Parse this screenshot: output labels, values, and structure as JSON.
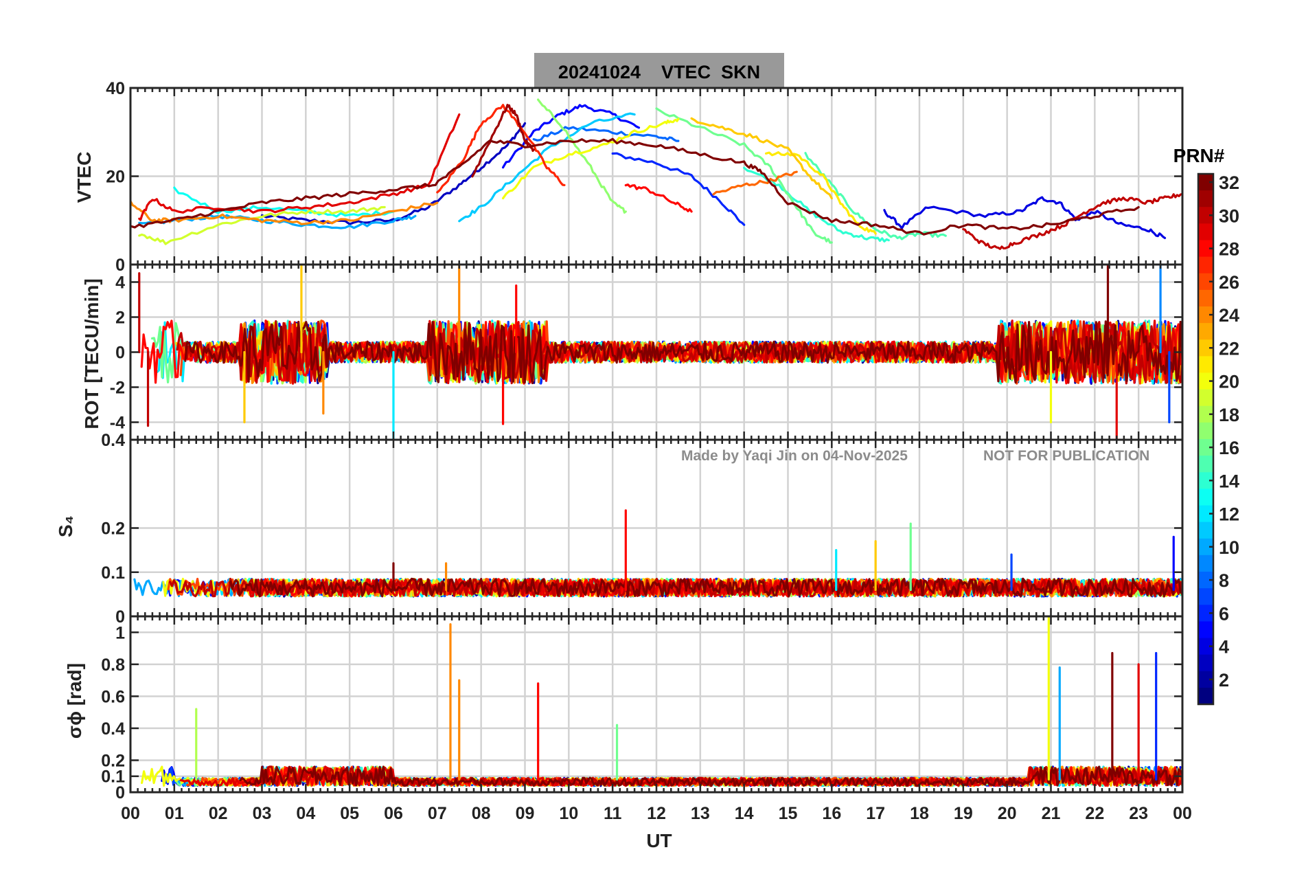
{
  "figure_title": "20241024    VTEC  SKN",
  "watermark": {
    "made_by": "Made by Yaqi Jin on 04-Nov-2025",
    "notice": "NOT FOR PUBLICATION"
  },
  "colors": {
    "title_background": "#999999",
    "grid": "#d2d2d2",
    "axes": "#262626",
    "watermark": "#8c8c8c"
  },
  "colorbar": {
    "title": "PRN#",
    "colormap": "jet",
    "range": [
      1,
      32
    ],
    "ticks": [
      "2",
      "4",
      "6",
      "8",
      "10",
      "12",
      "14",
      "16",
      "18",
      "20",
      "22",
      "24",
      "26",
      "28",
      "30",
      "32"
    ]
  },
  "chart_data": [
    {
      "type": "line",
      "panel": "vtec",
      "title": "20241024    VTEC  SKN",
      "ylabel": "VTEC",
      "xlabel": "",
      "xlim": [
        0,
        24
      ],
      "ylim": [
        0,
        40
      ],
      "ytick_labels": [
        "40",
        "20",
        ""
      ],
      "yticks": [
        40,
        20,
        0
      ],
      "series": [
        {
          "name": "PRN 3",
          "prn": 3,
          "x": [
            3.0,
            4.0,
            5.0,
            6.0,
            6.8,
            7.5,
            8.0,
            8.6,
            9.0
          ],
          "y": [
            11,
            10,
            9.5,
            10,
            13,
            18,
            22,
            27,
            32
          ]
        },
        {
          "name": "PRN 5",
          "prn": 5,
          "x": [
            8.5,
            9.2,
            9.8,
            10.3,
            11.0,
            11.6
          ],
          "y": [
            22,
            30,
            34,
            36,
            34,
            31
          ]
        },
        {
          "name": "PRN 6",
          "prn": 6,
          "x": [
            11.0,
            12.0,
            12.8,
            13.5,
            14.0
          ],
          "y": [
            25,
            23,
            20,
            14,
            9
          ]
        },
        {
          "name": "PRN 8",
          "prn": 8,
          "x": [
            9.2,
            10.0,
            11.0,
            12.0,
            12.5
          ],
          "y": [
            28,
            31,
            30,
            29,
            28
          ]
        },
        {
          "name": "PRN 4",
          "prn": 4,
          "x": [
            17.2,
            17.6,
            18.2,
            19.5,
            20.3,
            20.8,
            21.2,
            21.6,
            22.0,
            22.6,
            23.2,
            23.6
          ],
          "y": [
            12,
            8.5,
            13,
            11,
            12,
            15,
            14,
            10,
            12,
            9,
            8,
            6
          ]
        },
        {
          "name": "PRN 10",
          "prn": 10,
          "x": [
            0.2,
            1.0,
            2.0,
            3.0,
            4.0,
            5.0,
            6.0,
            6.5
          ],
          "y": [
            9,
            10,
            11,
            10,
            9,
            8.5,
            10,
            11
          ]
        },
        {
          "name": "PRN 11",
          "prn": 11,
          "x": [
            7.5,
            8.0,
            8.8,
            9.5,
            10.5,
            11.5
          ],
          "y": [
            10,
            13,
            20,
            26,
            32,
            34
          ]
        },
        {
          "name": "PRN 13",
          "prn": 13,
          "x": [
            1.0,
            2.0,
            3.0,
            4.0,
            5.0,
            6.0
          ],
          "y": [
            17,
            12,
            13,
            12,
            11,
            12
          ]
        },
        {
          "name": "PRN 14",
          "prn": 14,
          "x": [
            14.0,
            14.8,
            15.5,
            16.2,
            16.8,
            17.3
          ],
          "y": [
            22,
            18,
            12,
            7.5,
            6,
            5.5
          ]
        },
        {
          "name": "PRN 15",
          "prn": 15,
          "x": [
            15.4,
            16.0,
            16.5,
            17.0,
            17.5,
            18.0,
            18.6
          ],
          "y": [
            25,
            18,
            12,
            8,
            6,
            7,
            6.5
          ]
        },
        {
          "name": "PRN 16",
          "prn": 16,
          "x": [
            12.0,
            13.0,
            14.0,
            14.6,
            15.2,
            15.6,
            16.0
          ],
          "y": [
            35,
            31,
            27,
            22,
            13,
            7,
            5
          ]
        },
        {
          "name": "PRN 17",
          "prn": 17,
          "x": [
            9.3,
            9.8,
            10.5,
            11.0,
            11.3
          ],
          "y": [
            37,
            32,
            22,
            14,
            12
          ]
        },
        {
          "name": "PRN 19",
          "prn": 19,
          "x": [
            0.2,
            0.8,
            2.0,
            3.0,
            4.0,
            5.0,
            5.8
          ],
          "y": [
            7,
            5,
            9,
            11,
            12,
            12,
            13
          ]
        },
        {
          "name": "PRN 20",
          "prn": 20,
          "x": [
            8.5,
            9.2,
            10.0,
            10.8,
            11.5,
            12.2,
            12.5
          ],
          "y": [
            15,
            22,
            25,
            27,
            30,
            32,
            33
          ]
        },
        {
          "name": "PRN 21",
          "prn": 21,
          "x": [
            14.5,
            15.2,
            15.8,
            16.2,
            16.6,
            17.0
          ],
          "y": [
            25,
            25,
            20,
            14,
            9,
            7
          ]
        },
        {
          "name": "PRN 22",
          "prn": 22,
          "x": [
            12.8,
            13.5,
            14.2,
            15.0,
            15.5,
            16.0
          ],
          "y": [
            33,
            31,
            29,
            26,
            20,
            15
          ]
        },
        {
          "name": "PRN 24",
          "prn": 24,
          "x": [
            0.0,
            0.5,
            1.0,
            2.0,
            3.0,
            4.0,
            5.0,
            6.0,
            7.0
          ],
          "y": [
            14,
            10,
            10,
            11,
            10,
            9.5,
            10,
            12,
            14
          ]
        },
        {
          "name": "PRN 25",
          "prn": 25,
          "x": [
            13.3,
            14.0,
            14.6,
            15.2
          ],
          "y": [
            16,
            18,
            19,
            21
          ]
        },
        {
          "name": "PRN 27",
          "prn": 27,
          "x": [
            7.0,
            7.6,
            8.0,
            8.5,
            9.0,
            9.5,
            9.9
          ],
          "y": [
            16,
            24,
            32,
            36,
            30,
            22,
            18
          ]
        },
        {
          "name": "PRN 28",
          "prn": 28,
          "x": [
            11.3,
            11.8,
            12.4,
            12.8
          ],
          "y": [
            18,
            17,
            14,
            12
          ]
        },
        {
          "name": "PRN 29",
          "prn": 29,
          "x": [
            0.2,
            0.5,
            1.0,
            2.0,
            3.0,
            4.0,
            5.0,
            6.0,
            6.8,
            7.5
          ],
          "y": [
            10,
            15,
            12,
            13,
            12,
            13,
            14,
            16,
            18,
            34
          ]
        },
        {
          "name": "PRN 30",
          "prn": 30,
          "x": [
            19.0,
            19.4,
            19.8,
            20.2,
            20.8,
            21.3,
            21.8,
            22.2,
            22.7,
            23.2,
            23.6,
            24.0
          ],
          "y": [
            8,
            5,
            3.5,
            5,
            7,
            9,
            12,
            14,
            15,
            14,
            15,
            16
          ]
        },
        {
          "name": "PRN 31",
          "prn": 31,
          "x": [
            7.8,
            8.3,
            8.6,
            8.8,
            9.0,
            9.2
          ],
          "y": [
            20,
            30,
            36,
            34,
            28,
            26
          ]
        },
        {
          "name": "PRN 32",
          "prn": 32,
          "x": [
            0.0,
            1.0,
            2.0,
            3.0,
            4.0,
            5.0,
            6.0,
            6.9,
            7.5,
            8.2,
            9.0,
            10.0,
            11.0,
            12.0,
            13.0,
            14.0,
            14.4,
            15.0,
            16.0,
            17.0,
            18.0,
            19.0,
            20.0,
            21.0,
            22.0,
            23.0
          ],
          "y": [
            8.5,
            10,
            12,
            14,
            15,
            16,
            17,
            18,
            22,
            28,
            27,
            28,
            28,
            27,
            25,
            23,
            21,
            14,
            10,
            9,
            7,
            9,
            8,
            9,
            11,
            13
          ]
        }
      ]
    },
    {
      "type": "line",
      "panel": "rot",
      "ylabel": "ROT [TECU/min]",
      "xlim": [
        0,
        24
      ],
      "ylim": [
        -5,
        5
      ],
      "yticks": [
        4,
        2,
        0,
        -2,
        -4
      ],
      "ytick_labels": [
        "4",
        "2",
        "0",
        "-2",
        "-4"
      ],
      "axis_top_label": "0",
      "note": "Noisy per-satellite rate of TEC; typical amplitude ±1 TECU/min, bursts to ±4–5 near 00-01 UT, 03-04 UT, 07-09 UT and 20-23 UT",
      "spikes": [
        {
          "prn": 30,
          "x": 0.2,
          "y": 4.5
        },
        {
          "prn": 30,
          "x": 0.4,
          "y": -4.2
        },
        {
          "prn": 22,
          "x": 2.6,
          "y": -4.0
        },
        {
          "prn": 22,
          "x": 3.9,
          "y": 5.0
        },
        {
          "prn": 24,
          "x": 4.4,
          "y": -3.5
        },
        {
          "prn": 12,
          "x": 6.0,
          "y": -5.0
        },
        {
          "prn": 24,
          "x": 7.5,
          "y": 5.0
        },
        {
          "prn": 28,
          "x": 8.5,
          "y": -4.1
        },
        {
          "prn": 28,
          "x": 8.8,
          "y": 3.8
        },
        {
          "prn": 20,
          "x": 21.0,
          "y": -4.0
        },
        {
          "prn": 32,
          "x": 22.3,
          "y": 5.0
        },
        {
          "prn": 29,
          "x": 22.5,
          "y": -5.0
        },
        {
          "prn": 9,
          "x": 23.5,
          "y": 5.0
        },
        {
          "prn": 7,
          "x": 23.7,
          "y": -4.0
        }
      ]
    },
    {
      "type": "line",
      "panel": "s4",
      "ylabel": "S₄",
      "xlim": [
        0,
        24
      ],
      "ylim": [
        0,
        0.4
      ],
      "yticks": [
        0.2,
        0.1,
        0
      ],
      "ytick_labels": [
        "0.2",
        "0.1",
        "0"
      ],
      "axis_top_label": "0.4",
      "note": "Background S4 about 0.04–0.08 with isolated spikes",
      "spikes": [
        {
          "prn": 28,
          "x": 11.3,
          "y": 0.24
        },
        {
          "prn": 16,
          "x": 17.8,
          "y": 0.21
        },
        {
          "prn": 12,
          "x": 16.1,
          "y": 0.15
        },
        {
          "prn": 22,
          "x": 17.0,
          "y": 0.17
        },
        {
          "prn": 7,
          "x": 20.1,
          "y": 0.14
        },
        {
          "prn": 5,
          "x": 23.8,
          "y": 0.18
        },
        {
          "prn": 32,
          "x": 6.0,
          "y": 0.12
        },
        {
          "prn": 24,
          "x": 7.2,
          "y": 0.12
        }
      ]
    },
    {
      "type": "line",
      "panel": "sigma_phi",
      "ylabel": "σϕ [rad]",
      "xlabel": "UT",
      "xlim": [
        0,
        24
      ],
      "ylim": [
        0,
        1.1
      ],
      "yticks": [
        1,
        0.8,
        0.6,
        0.4,
        0.2,
        0.1,
        0
      ],
      "ytick_labels": [
        "1",
        "0.8",
        "0.6",
        "0.4",
        "0.2",
        "0.1",
        "0"
      ],
      "xtick_labels": [
        "00",
        "01",
        "02",
        "03",
        "04",
        "05",
        "06",
        "07",
        "08",
        "09",
        "10",
        "11",
        "12",
        "13",
        "14",
        "15",
        "16",
        "17",
        "18",
        "19",
        "20",
        "21",
        "22",
        "23",
        "00"
      ],
      "note": "Background sigma-phi about 0.05–0.15 with bursts",
      "spikes": [
        {
          "prn": 18,
          "x": 1.5,
          "y": 0.52
        },
        {
          "prn": 24,
          "x": 7.3,
          "y": 1.05
        },
        {
          "prn": 24,
          "x": 7.5,
          "y": 0.7
        },
        {
          "prn": 28,
          "x": 9.3,
          "y": 0.68
        },
        {
          "prn": 16,
          "x": 11.1,
          "y": 0.42
        },
        {
          "prn": 20,
          "x": 20.95,
          "y": 1.1
        },
        {
          "prn": 10,
          "x": 21.2,
          "y": 0.78
        },
        {
          "prn": 32,
          "x": 22.4,
          "y": 0.87
        },
        {
          "prn": 29,
          "x": 23.0,
          "y": 0.8
        },
        {
          "prn": 6,
          "x": 23.4,
          "y": 0.87
        }
      ]
    }
  ]
}
